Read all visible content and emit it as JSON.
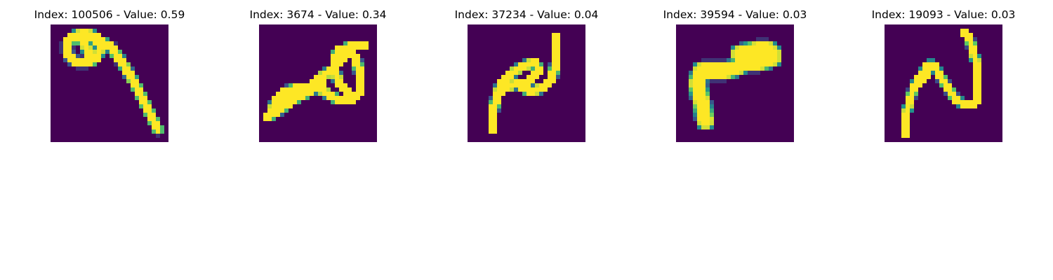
{
  "figure": {
    "background": "#ffffff",
    "colormap": "viridis",
    "colormap_stops": [
      "#440154",
      "#3b528b",
      "#21918c",
      "#5ec962",
      "#fde725"
    ],
    "panels": [
      {
        "title": "Index: 100506 - Value: 0.59",
        "index": 100506,
        "value": 0.59
      },
      {
        "title": "Index: 3674 - Value: 0.34",
        "index": 3674,
        "value": 0.34
      },
      {
        "title": "Index: 37234 - Value: 0.04",
        "index": 37234,
        "value": 0.04
      },
      {
        "title": "Index: 39594 - Value: 0.03",
        "index": 39594,
        "value": 0.03
      },
      {
        "title": "Index: 19093 - Value: 0.03",
        "index": 19093,
        "value": 0.03
      }
    ]
  }
}
